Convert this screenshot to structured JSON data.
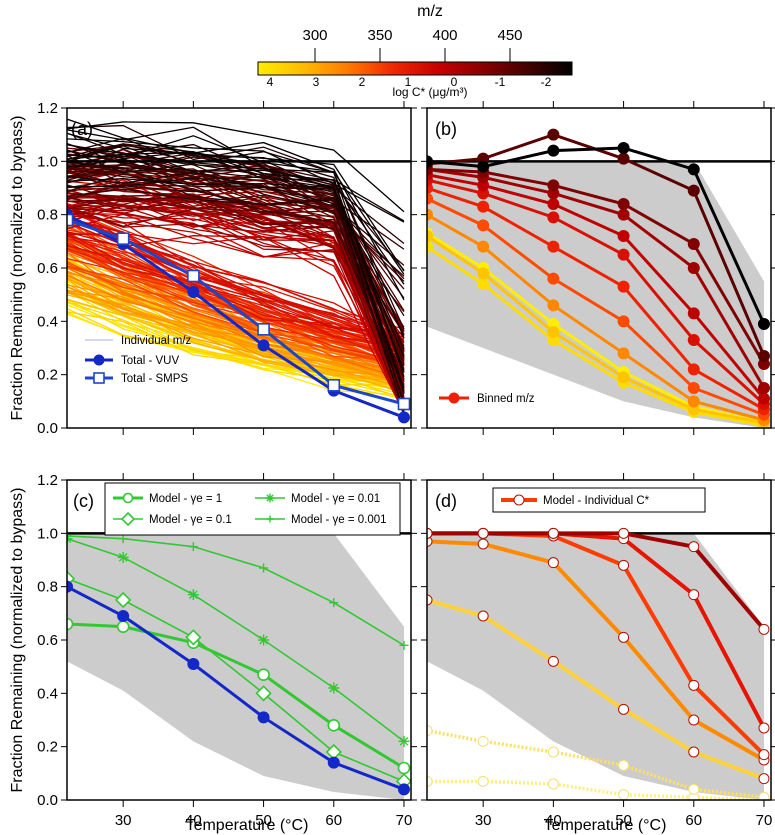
{
  "figure": {
    "colorbar": {
      "title": "m/z",
      "top_ticks": [
        "300",
        "350",
        "400",
        "450"
      ],
      "bottom_ticks": [
        "4",
        "3",
        "2",
        "1",
        "0",
        "-1",
        "-2"
      ],
      "bottom_label": "log C* (μg/m³)",
      "colors": [
        "#ffee00",
        "#ffbb00",
        "#ff7a00",
        "#ee2a00",
        "#c80000",
        "#8a0000",
        "#450000",
        "#000000"
      ]
    },
    "shared_ylabel": "Fraction Remaining (normalized to bypass)",
    "xlabel": "Temperature (°C)",
    "yticks": [
      "0.0",
      "0.2",
      "0.4",
      "0.6",
      "0.8",
      "1.0",
      "1.2"
    ],
    "xticks": [
      "30",
      "40",
      "50",
      "60",
      "70"
    ]
  },
  "chart_data": [
    {
      "panel": "(a)",
      "type": "line",
      "xlim": [
        22,
        71
      ],
      "ylim": [
        0,
        1.2
      ],
      "x": [
        22,
        30,
        40,
        50,
        60,
        70
      ],
      "reference_line": 1.0,
      "series": [
        {
          "name": "Individual m/z",
          "style": "thin lines colored by m/z (approx. 230 traces, fanning from 0.5–1.2 at 22 °C down to 0.0–0.9 at 70 °C)"
        },
        {
          "name": "Total - VUV",
          "values": [
            0.8,
            0.69,
            0.51,
            0.31,
            0.14,
            0.04
          ],
          "color": "#1428c8",
          "marker": "filled circle"
        },
        {
          "name": "Total - SMPS",
          "values": [
            0.78,
            0.71,
            0.57,
            0.37,
            0.16,
            0.09
          ],
          "color": "#1e46c8",
          "marker": "open square"
        }
      ],
      "legend": [
        "Individual m/z",
        "Total - VUV",
        "Total - SMPS"
      ]
    },
    {
      "panel": "(b)",
      "type": "line",
      "xlim": [
        22,
        71
      ],
      "ylim": [
        0,
        1.2
      ],
      "x": [
        22,
        30,
        40,
        50,
        60,
        70
      ],
      "reference_line": 1.0,
      "shaded_range": {
        "lower": [
          0.38,
          0.3,
          0.2,
          0.1,
          0.04,
          0.0
        ],
        "upper": [
          1.0,
          1.0,
          1.0,
          1.0,
          1.0,
          0.55
        ]
      },
      "series": [
        {
          "values": [
            0.68,
            0.54,
            0.33,
            0.17,
            0.06,
            0.01
          ],
          "color": "#ffdc00"
        },
        {
          "values": [
            0.73,
            0.6,
            0.39,
            0.21,
            0.08,
            0.02
          ],
          "color": "#ffee00"
        },
        {
          "values": [
            0.72,
            0.58,
            0.36,
            0.19,
            0.07,
            0.02
          ],
          "color": "#ffc400"
        },
        {
          "values": [
            0.8,
            0.68,
            0.46,
            0.28,
            0.1,
            0.03
          ],
          "color": "#ff8800"
        },
        {
          "values": [
            0.86,
            0.76,
            0.56,
            0.4,
            0.15,
            0.05
          ],
          "color": "#ff4a00"
        },
        {
          "values": [
            0.9,
            0.83,
            0.68,
            0.53,
            0.22,
            0.07
          ],
          "color": "#ee2200"
        },
        {
          "values": [
            0.93,
            0.88,
            0.79,
            0.65,
            0.33,
            0.09
          ],
          "color": "#d81000"
        },
        {
          "values": [
            0.95,
            0.91,
            0.84,
            0.72,
            0.43,
            0.11
          ],
          "color": "#c00000"
        },
        {
          "values": [
            0.97,
            0.94,
            0.88,
            0.8,
            0.6,
            0.15
          ],
          "color": "#a00000"
        },
        {
          "values": [
            0.97,
            0.96,
            0.91,
            0.84,
            0.69,
            0.24
          ],
          "color": "#800000"
        },
        {
          "values": [
            0.99,
            1.01,
            1.1,
            1.01,
            0.89,
            0.27
          ],
          "color": "#5a0000"
        },
        {
          "values": [
            1.0,
            0.98,
            1.04,
            1.05,
            0.97,
            0.39
          ],
          "color": "#000000"
        }
      ],
      "legend": [
        "Binned m/z"
      ]
    },
    {
      "panel": "(c)",
      "type": "line",
      "xlim": [
        22,
        71
      ],
      "ylim": [
        0,
        1.2
      ],
      "x": [
        22,
        30,
        40,
        50,
        60,
        70
      ],
      "reference_line": 1.0,
      "shaded_range": {
        "lower": [
          0.52,
          0.41,
          0.22,
          0.09,
          0.03,
          0.0
        ],
        "upper": [
          1.0,
          1.0,
          1.0,
          1.0,
          1.0,
          0.65
        ]
      },
      "series": [
        {
          "name": "Model - γe = 1",
          "values": [
            0.66,
            0.65,
            0.59,
            0.47,
            0.28,
            0.12
          ],
          "color": "#32c832",
          "marker": "open circle"
        },
        {
          "name": "Model - γe = 0.1",
          "values": [
            0.83,
            0.75,
            0.61,
            0.4,
            0.18,
            0.07
          ],
          "color": "#32c832",
          "marker": "open diamond"
        },
        {
          "name": "Model - γe = 0.01",
          "values": [
            0.98,
            0.91,
            0.77,
            0.6,
            0.42,
            0.22
          ],
          "color": "#32c832",
          "marker": "star"
        },
        {
          "name": "Model - γe = 0.001",
          "values": [
            0.99,
            0.98,
            0.95,
            0.87,
            0.74,
            0.58
          ],
          "color": "#32c832",
          "marker": "plus"
        },
        {
          "name": "Total - VUV",
          "values": [
            0.8,
            0.69,
            0.51,
            0.31,
            0.14,
            0.04
          ],
          "color": "#1428c8",
          "marker": "filled circle"
        }
      ],
      "legend": [
        "Model - γe = 1",
        "Model - γe = 0.1",
        "Model - γe = 0.01",
        "Model - γe = 0.001"
      ]
    },
    {
      "panel": "(d)",
      "type": "line",
      "xlim": [
        22,
        71
      ],
      "ylim": [
        0,
        1.2
      ],
      "x": [
        22,
        30,
        40,
        50,
        60,
        70
      ],
      "reference_line": 1.0,
      "shaded_range": {
        "lower": [
          0.52,
          0.41,
          0.22,
          0.09,
          0.03,
          0.0
        ],
        "upper": [
          1.0,
          1.0,
          1.0,
          1.0,
          1.0,
          0.65
        ]
      },
      "series": [
        {
          "values": [
            0.07,
            0.07,
            0.06,
            0.02,
            0.01,
            0.0
          ],
          "color": "#fff07a",
          "dashed": true
        },
        {
          "values": [
            0.26,
            0.22,
            0.18,
            0.13,
            0.04,
            0.01
          ],
          "color": "#ffe060",
          "dashed": true
        },
        {
          "values": [
            0.75,
            0.69,
            0.52,
            0.34,
            0.18,
            0.08
          ],
          "color": "#ffd23c"
        },
        {
          "values": [
            0.97,
            0.96,
            0.89,
            0.61,
            0.3,
            0.15
          ],
          "color": "#ff8a00"
        },
        {
          "values": [
            1.0,
            1.0,
            0.99,
            0.88,
            0.43,
            0.17
          ],
          "color": "#ff3c00"
        },
        {
          "values": [
            1.0,
            1.0,
            1.0,
            0.98,
            0.77,
            0.27
          ],
          "color": "#e61400"
        },
        {
          "values": [
            1.0,
            1.0,
            1.0,
            1.0,
            0.95,
            0.64
          ],
          "color": "#a00000"
        }
      ],
      "legend": [
        "Model - Individual C*"
      ]
    }
  ]
}
